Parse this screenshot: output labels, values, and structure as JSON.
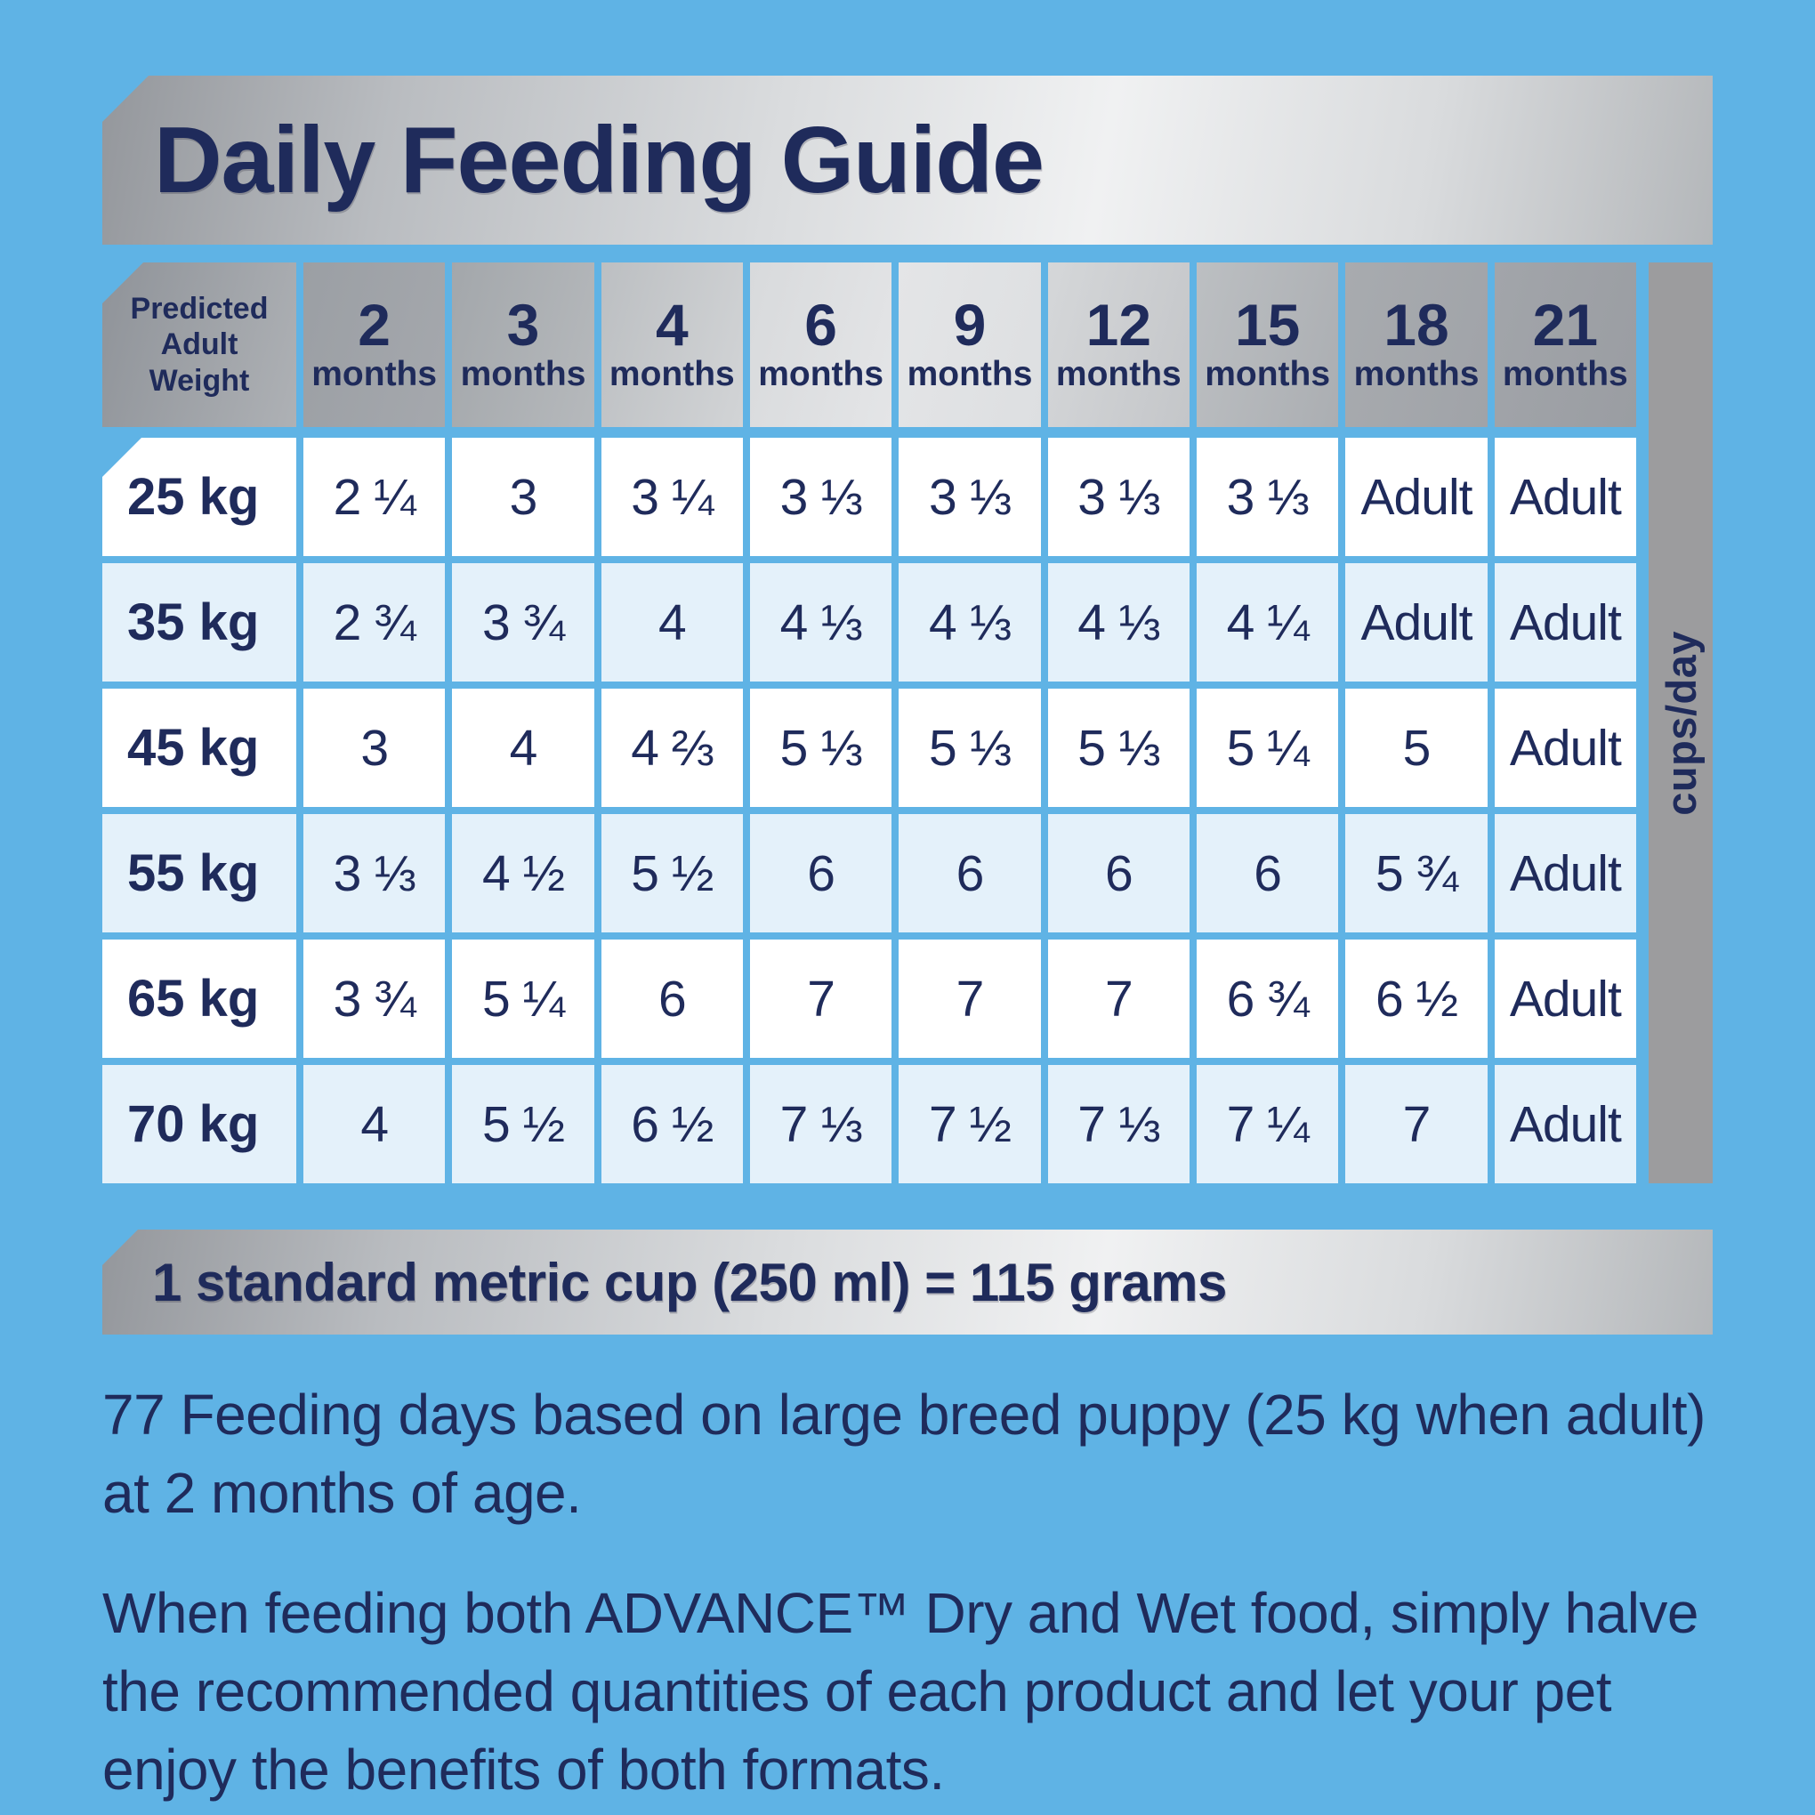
{
  "title": "Daily Feeding Guide",
  "colors": {
    "background": "#5FB3E5",
    "navy_text": "#1F2B5B",
    "row_white": "#FFFFFF",
    "row_pale_blue": "#E4F1FA",
    "silver_strip": "#9C9C9E"
  },
  "table": {
    "weight_header": "Predicted\nAdult\nWeight",
    "age_columns": [
      {
        "num": "2",
        "unit": "months"
      },
      {
        "num": "3",
        "unit": "months"
      },
      {
        "num": "4",
        "unit": "months"
      },
      {
        "num": "6",
        "unit": "months"
      },
      {
        "num": "9",
        "unit": "months"
      },
      {
        "num": "12",
        "unit": "months"
      },
      {
        "num": "15",
        "unit": "months"
      },
      {
        "num": "18",
        "unit": "months"
      },
      {
        "num": "21",
        "unit": "months"
      }
    ],
    "unit_label": "cups/day",
    "rows": [
      {
        "weight": "25 kg",
        "values": [
          "2 ¼",
          "3",
          "3 ¼",
          "3 ⅓",
          "3 ⅓",
          "3 ⅓",
          "3 ⅓",
          "Adult",
          "Adult"
        ]
      },
      {
        "weight": "35 kg",
        "values": [
          "2 ¾",
          "3 ¾",
          "4",
          "4 ⅓",
          "4 ⅓",
          "4 ⅓",
          "4 ¼",
          "Adult",
          "Adult"
        ]
      },
      {
        "weight": "45 kg",
        "values": [
          "3",
          "4",
          "4 ⅔",
          "5 ⅓",
          "5 ⅓",
          "5 ⅓",
          "5 ¼",
          "5",
          "Adult"
        ]
      },
      {
        "weight": "55 kg",
        "values": [
          "3 ⅓",
          "4 ½",
          "5 ½",
          "6",
          "6",
          "6",
          "6",
          "5 ¾",
          "Adult"
        ]
      },
      {
        "weight": "65 kg",
        "values": [
          "3 ¾",
          "5 ¼",
          "6",
          "7",
          "7",
          "7",
          "6 ¾",
          "6 ½",
          "Adult"
        ]
      },
      {
        "weight": "70 kg",
        "values": [
          "4",
          "5 ½",
          "6 ½",
          "7 ⅓",
          "7 ½",
          "7 ⅓",
          "7 ¼",
          "7",
          "Adult"
        ]
      }
    ]
  },
  "cup_note": "1 standard metric cup (250 ml) = 115 grams",
  "footnotes": {
    "feeding_days": "77 Feeding days based on large breed puppy (25 kg when adult) at 2 months of age.",
    "mixed_feeding": "When feeding both ADVANCE™ Dry and Wet food, simply halve the recommended quantities of each product and let your pet enjoy the benefits of both formats."
  },
  "chart_data": {
    "type": "table",
    "title": "Daily Feeding Guide",
    "row_header": "Predicted Adult Weight",
    "columns": [
      "2 months",
      "3 months",
      "4 months",
      "6 months",
      "9 months",
      "12 months",
      "15 months",
      "18 months",
      "21 months"
    ],
    "unit": "cups/day",
    "rows": [
      {
        "label": "25 kg",
        "values": [
          "2 ¼",
          "3",
          "3 ¼",
          "3 ⅓",
          "3 ⅓",
          "3 ⅓",
          "3 ⅓",
          "Adult",
          "Adult"
        ]
      },
      {
        "label": "35 kg",
        "values": [
          "2 ¾",
          "3 ¾",
          "4",
          "4 ⅓",
          "4 ⅓",
          "4 ⅓",
          "4 ¼",
          "Adult",
          "Adult"
        ]
      },
      {
        "label": "45 kg",
        "values": [
          "3",
          "4",
          "4 ⅔",
          "5 ⅓",
          "5 ⅓",
          "5 ⅓",
          "5 ¼",
          "5",
          "Adult"
        ]
      },
      {
        "label": "55 kg",
        "values": [
          "3 ⅓",
          "4 ½",
          "5 ½",
          "6",
          "6",
          "6",
          "6",
          "5 ¾",
          "Adult"
        ]
      },
      {
        "label": "65 kg",
        "values": [
          "3 ¾",
          "5 ¼",
          "6",
          "7",
          "7",
          "7",
          "6 ¾",
          "6 ½",
          "Adult"
        ]
      },
      {
        "label": "70 kg",
        "values": [
          "4",
          "5 ½",
          "6 ½",
          "7 ⅓",
          "7 ½",
          "7 ⅓",
          "7 ¼",
          "7",
          "Adult"
        ]
      }
    ]
  }
}
